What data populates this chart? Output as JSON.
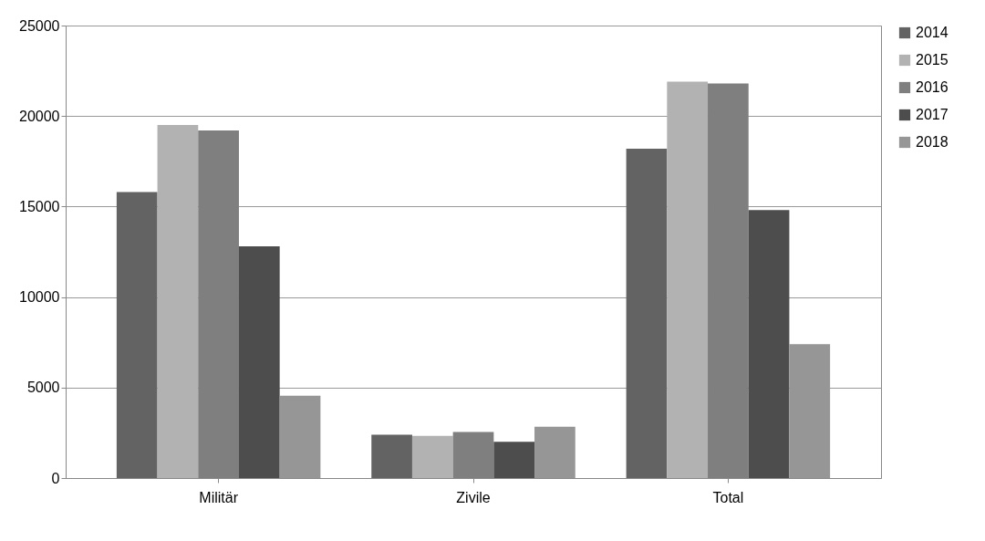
{
  "chart_data": {
    "type": "bar",
    "categories": [
      "Militär",
      "Zivile",
      "Total"
    ],
    "series": [
      {
        "name": "2014",
        "color": "#636363",
        "values": [
          15800,
          2400,
          18200
        ]
      },
      {
        "name": "2015",
        "color": "#b2b2b2",
        "values": [
          19500,
          2330,
          21900
        ]
      },
      {
        "name": "2016",
        "color": "#7f7f7f",
        "values": [
          19200,
          2550,
          21800
        ]
      },
      {
        "name": "2017",
        "color": "#4d4d4d",
        "values": [
          12800,
          2000,
          14800
        ]
      },
      {
        "name": "2018",
        "color": "#969696",
        "values": [
          4550,
          2830,
          7400
        ]
      }
    ],
    "ylim": [
      0,
      25000
    ],
    "yticks": [
      0,
      5000,
      10000,
      15000,
      20000,
      25000
    ],
    "grid": "y",
    "legend": "right"
  }
}
